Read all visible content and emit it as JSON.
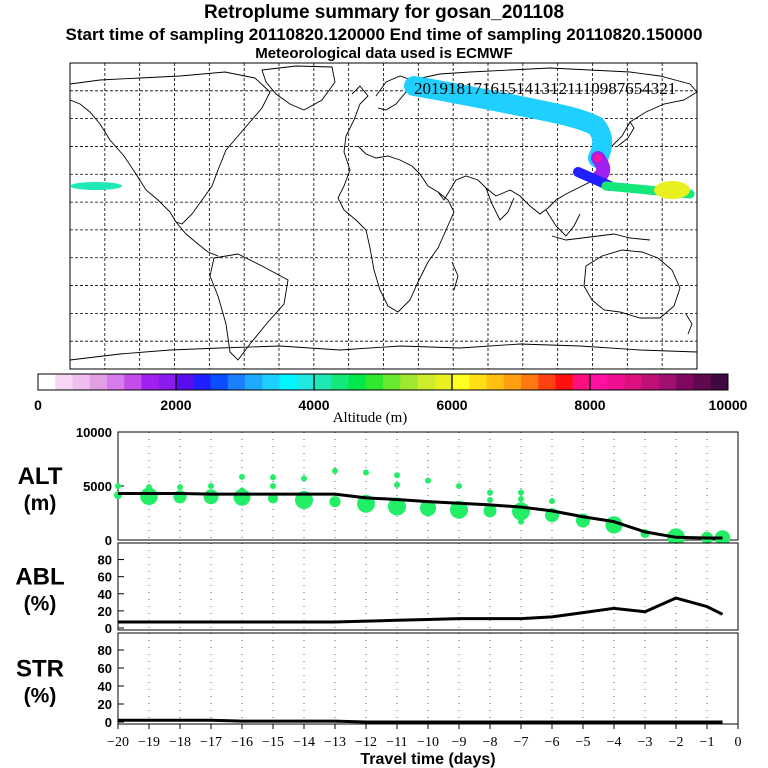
{
  "header": {
    "title": "Retroplume summary for gosan_201108",
    "line2": "Start time of sampling 20110820.120000     End time of sampling 20110820.150000",
    "line3": "Meteorological data used is ECMWF"
  },
  "colorbar": {
    "label": "Altitude (m)",
    "ticks": [
      "0",
      "2000",
      "4000",
      "6000",
      "8000",
      "10000"
    ],
    "colors": [
      "#ffffff",
      "#f6d8f6",
      "#eebfee",
      "#e39fe3",
      "#d77bec",
      "#c44dea",
      "#a020f0",
      "#8a1af0",
      "#5a0ef0",
      "#2020ff",
      "#0b4dff",
      "#1a80ff",
      "#20aaff",
      "#1ecfff",
      "#00f5ff",
      "#1ee8e0",
      "#1ee8b4",
      "#14e87a",
      "#00e84a",
      "#30e830",
      "#6ae830",
      "#a0e830",
      "#ccec2c",
      "#e8f020",
      "#ffff20",
      "#ffe014",
      "#ffc010",
      "#ffa010",
      "#ff7810",
      "#ff4010",
      "#ff1010",
      "#ff1080",
      "#ff10a0",
      "#ee1090",
      "#dd1080",
      "#c01078",
      "#a01070",
      "#800860",
      "#600850",
      "#400840"
    ]
  },
  "map_plume": {
    "labels": [
      "20",
      "19",
      "18",
      "17",
      "16",
      "15",
      "14",
      "13",
      "12",
      "11",
      "10",
      "9",
      "8",
      "7",
      "6",
      "5",
      "4",
      "3",
      "2",
      "1"
    ]
  },
  "chart_data": [
    {
      "type": "line",
      "name": "ALT",
      "ylabel": "ALT (m)",
      "ylabel_line1": "ALT",
      "ylabel_line2": "(m)",
      "ylim": [
        0,
        10000
      ],
      "yticks": [
        "10000",
        "5000",
        "0"
      ],
      "x": [
        -20,
        -19,
        -18,
        -17,
        -16,
        -15,
        -14,
        -13,
        -12,
        -11,
        -10,
        -9,
        -8,
        -7,
        -6,
        -5,
        -4,
        -3,
        -2,
        -1,
        -0.5
      ],
      "values": [
        4300,
        4300,
        4300,
        4250,
        4250,
        4250,
        4250,
        4250,
        3900,
        3750,
        3550,
        3400,
        3250,
        3050,
        2700,
        2150,
        1700,
        750,
        250,
        180,
        180
      ],
      "scatter_color": "#22ee66",
      "scatter_main": [
        [
          -20,
          4150
        ],
        [
          -19,
          4050
        ],
        [
          -18,
          4000
        ],
        [
          -17,
          4000
        ],
        [
          -16,
          3950
        ],
        [
          -15,
          3850
        ],
        [
          -14,
          3700
        ],
        [
          -13,
          3550
        ],
        [
          -12,
          3350
        ],
        [
          -11,
          3100
        ],
        [
          -10,
          2950
        ],
        [
          -9,
          2800
        ],
        [
          -8,
          2700
        ],
        [
          -7,
          2650
        ],
        [
          -6,
          2300
        ],
        [
          -5,
          1800
        ],
        [
          -4,
          1400
        ],
        [
          -3,
          600
        ],
        [
          -2,
          250
        ],
        [
          -1,
          200
        ],
        [
          -0.5,
          180
        ]
      ],
      "scatter_upper": [
        [
          -20,
          5000
        ],
        [
          -19,
          4900
        ],
        [
          -18,
          4900
        ],
        [
          -17,
          5000
        ],
        [
          -16,
          5850
        ],
        [
          -16,
          4600
        ],
        [
          -15,
          5800
        ],
        [
          -15,
          5000
        ],
        [
          -14,
          5700
        ],
        [
          -13,
          6400
        ],
        [
          -12,
          6250
        ],
        [
          -11,
          6000
        ],
        [
          -11,
          5100
        ],
        [
          -10,
          5500
        ],
        [
          -9,
          5000
        ],
        [
          -8,
          4400
        ],
        [
          -8,
          3700
        ],
        [
          -7,
          4400
        ],
        [
          -7,
          3800
        ],
        [
          -7,
          1700
        ],
        [
          -6,
          3600
        ]
      ]
    },
    {
      "type": "line",
      "name": "ABL",
      "ylabel": "ABL (%)",
      "ylabel_line1": "ABL",
      "ylabel_line2": "(%)",
      "ylim": [
        0,
        90
      ],
      "yticks": [
        "80",
        "60",
        "40",
        "20",
        "0"
      ],
      "x": [
        -20,
        -19,
        -18,
        -17,
        -16,
        -15,
        -14,
        -13,
        -12,
        -11,
        -10,
        -9,
        -8,
        -7,
        -6,
        -5,
        -4,
        -3,
        -2,
        -1,
        -0.5
      ],
      "values": [
        7,
        7,
        7,
        7,
        7,
        7,
        7,
        7,
        8,
        9,
        10,
        11,
        11,
        11,
        13,
        18,
        23,
        19,
        35,
        25,
        16
      ]
    },
    {
      "type": "line",
      "name": "STR",
      "ylabel": "STR (%)",
      "ylabel_line1": "STR",
      "ylabel_line2": "(%)",
      "ylim": [
        0,
        90
      ],
      "yticks": [
        "80",
        "60",
        "40",
        "20",
        "0"
      ],
      "x": [
        -20,
        -19,
        -18,
        -17,
        -16,
        -15,
        -14,
        -13,
        -12,
        -11,
        -10,
        -9,
        -8,
        -7,
        -6,
        -5,
        -4,
        -3,
        -2,
        -1,
        -0.5
      ],
      "values": [
        2,
        2,
        2,
        2,
        1,
        1,
        1,
        1,
        0,
        0,
        0,
        0,
        0,
        0,
        0,
        0,
        0,
        0,
        0,
        0,
        0
      ]
    }
  ],
  "xaxis": {
    "label": "Travel time (days)",
    "ticks": [
      "−20",
      "−19",
      "−18",
      "−17",
      "−16",
      "−15",
      "−14",
      "−13",
      "−12",
      "−11",
      "−10",
      "−9",
      "−8",
      "−7",
      "−6",
      "−5",
      "−4",
      "−3",
      "−2",
      "−1",
      "0"
    ]
  }
}
